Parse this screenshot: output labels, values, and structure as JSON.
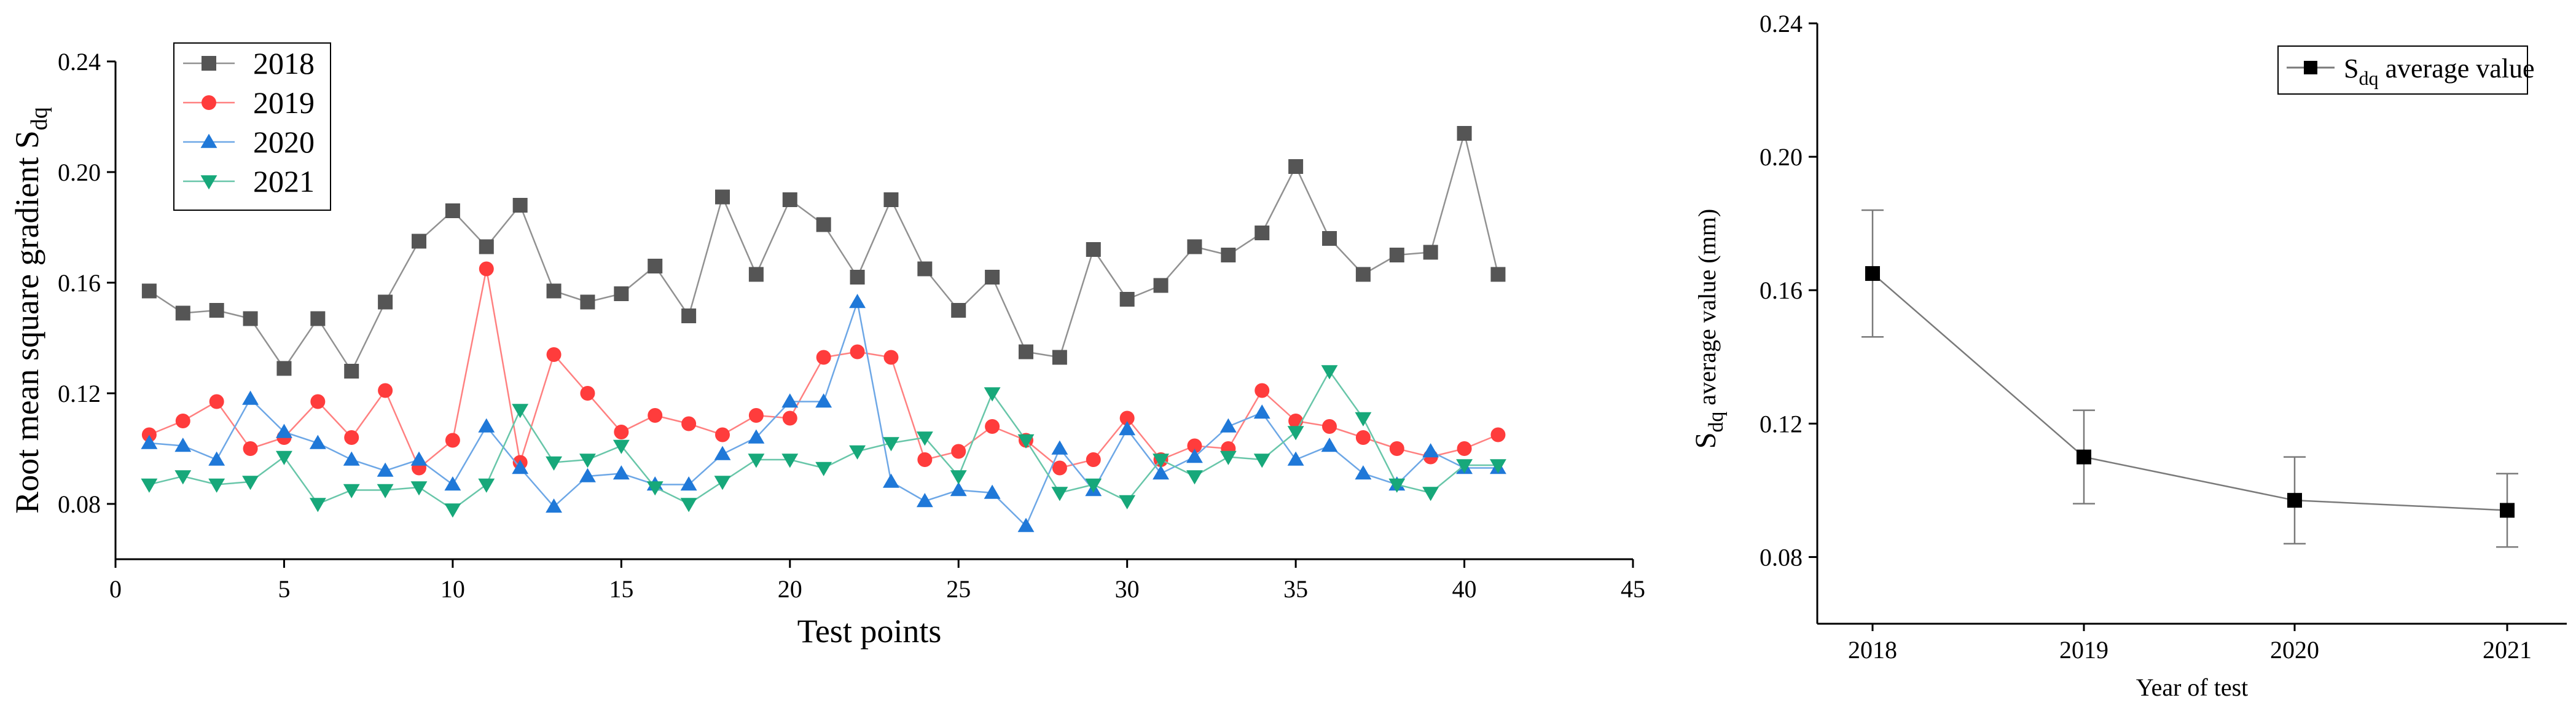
{
  "chart_data": [
    {
      "type": "line",
      "xlabel": "Test points",
      "ylabel": "Root mean square gradient S",
      "ylabel_sub": "dq",
      "xlim": [
        0,
        45
      ],
      "ylim": [
        0.06,
        0.24
      ],
      "xticks": [
        0,
        5,
        10,
        15,
        20,
        25,
        30,
        35,
        40,
        45
      ],
      "yticks": [
        0.08,
        0.12,
        0.16,
        0.2,
        0.24
      ],
      "ytick_labels": [
        "0.08",
        "0.12",
        "0.16",
        "0.20",
        "0.24"
      ],
      "legend_position": "top-left",
      "x": [
        1,
        2,
        3,
        4,
        5,
        6,
        7,
        8,
        9,
        10,
        11,
        12,
        13,
        14,
        15,
        16,
        17,
        18,
        19,
        20,
        21,
        22,
        23,
        24,
        25,
        26,
        27,
        28,
        29,
        30,
        31,
        32,
        33,
        34,
        35,
        36,
        37,
        38,
        39,
        40,
        41
      ],
      "series": [
        {
          "name": "2018",
          "color": "#555555",
          "marker": "square",
          "values": [
            0.157,
            0.149,
            0.15,
            0.147,
            0.129,
            0.147,
            0.128,
            0.153,
            0.175,
            0.186,
            0.173,
            0.188,
            0.157,
            0.153,
            0.156,
            0.166,
            0.148,
            0.191,
            0.163,
            0.19,
            0.181,
            0.162,
            0.19,
            0.165,
            0.15,
            0.162,
            0.135,
            0.133,
            0.172,
            0.154,
            0.159,
            0.173,
            0.17,
            0.178,
            0.202,
            0.176,
            0.163,
            0.17,
            0.171,
            0.214,
            0.163
          ]
        },
        {
          "name": "2019",
          "color": "#ff3c3c",
          "marker": "circle",
          "values": [
            0.105,
            0.11,
            0.117,
            0.1,
            0.104,
            0.117,
            0.104,
            0.121,
            0.093,
            0.103,
            0.165,
            0.095,
            0.134,
            0.12,
            0.106,
            0.112,
            0.109,
            0.105,
            0.112,
            0.111,
            0.133,
            0.135,
            0.133,
            0.096,
            0.099,
            0.108,
            0.103,
            0.093,
            0.096,
            0.111,
            0.096,
            0.101,
            0.1,
            0.121,
            0.11,
            0.108,
            0.104,
            0.1,
            0.097,
            0.1,
            0.105
          ]
        },
        {
          "name": "2020",
          "color": "#1f78d8",
          "marker": "triangle-up",
          "values": [
            0.102,
            0.101,
            0.096,
            0.118,
            0.106,
            0.102,
            0.096,
            0.092,
            0.096,
            0.087,
            0.108,
            0.093,
            0.079,
            0.09,
            0.091,
            0.087,
            0.087,
            0.098,
            0.104,
            0.117,
            0.117,
            0.153,
            0.088,
            0.081,
            0.085,
            0.084,
            0.072,
            0.1,
            0.085,
            0.107,
            0.091,
            0.097,
            0.108,
            0.113,
            0.096,
            0.101,
            0.091,
            0.087,
            0.099,
            0.093,
            0.093
          ]
        },
        {
          "name": "2021",
          "color": "#17a87a",
          "marker": "triangle-down",
          "values": [
            0.087,
            0.09,
            0.087,
            0.088,
            0.097,
            0.08,
            0.085,
            0.085,
            0.086,
            0.078,
            0.087,
            0.114,
            0.095,
            0.096,
            0.101,
            0.086,
            0.08,
            0.088,
            0.096,
            0.096,
            0.093,
            0.099,
            0.102,
            0.104,
            0.09,
            0.12,
            0.103,
            0.084,
            0.087,
            0.081,
            0.096,
            0.09,
            0.097,
            0.096,
            0.106,
            0.128,
            0.111,
            0.087,
            0.084,
            0.094,
            0.094
          ]
        }
      ]
    },
    {
      "type": "line",
      "xlabel": "Year of test",
      "ylabel": "S",
      "ylabel_sub": "dq",
      "ylabel_rest": "average value (mm)",
      "ylim": [
        0.06,
        0.24
      ],
      "yticks": [
        0.08,
        0.12,
        0.16,
        0.2,
        0.24
      ],
      "ytick_labels": [
        "0.08",
        "0.12",
        "0.16",
        "0.20",
        "0.24"
      ],
      "categories": [
        "2018",
        "2019",
        "2020",
        "2021"
      ],
      "legend_position": "top-right",
      "series": [
        {
          "name": "S",
          "name_sub": "dq",
          "name_rest": " average value",
          "color": "#000000",
          "marker": "square",
          "values": [
            0.165,
            0.11,
            0.097,
            0.094
          ],
          "error": [
            0.019,
            0.014,
            0.013,
            0.011
          ]
        }
      ]
    }
  ]
}
